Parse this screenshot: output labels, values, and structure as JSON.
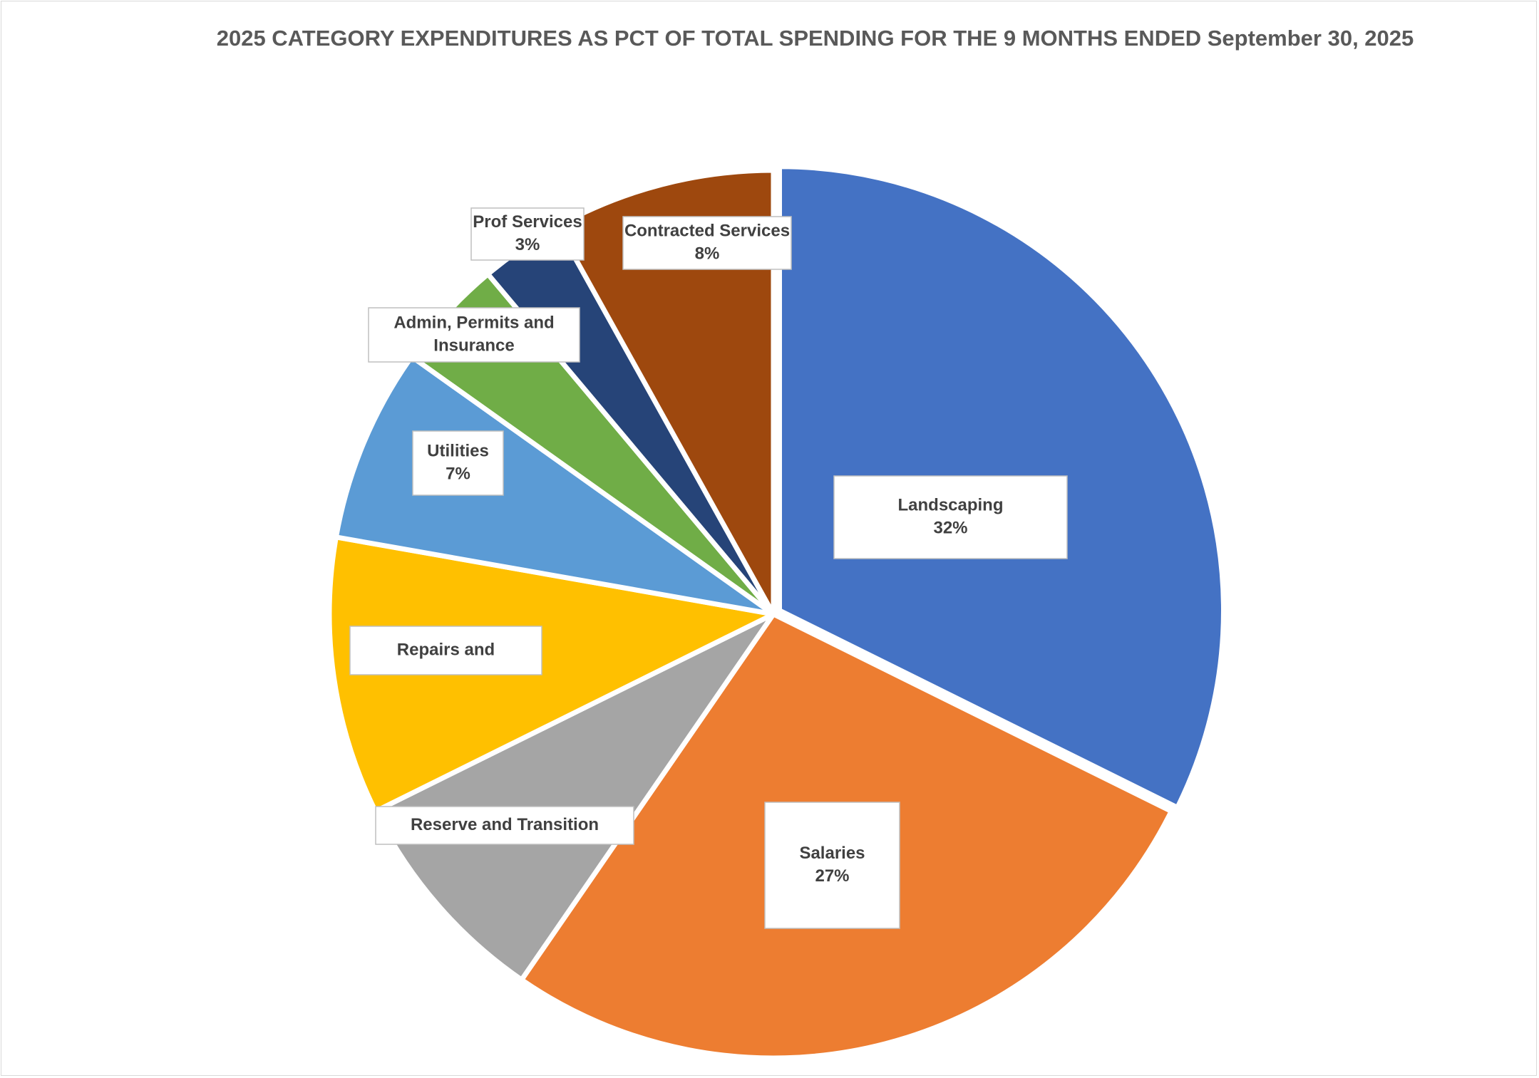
{
  "chart_data": {
    "type": "pie",
    "title": "2025 CATEGORY EXPENDITURES AS PCT OF TOTAL SPENDING FOR THE 9 MONTHS ENDED September 30, 2025",
    "legend": "none",
    "slices": [
      {
        "name": "Landscaping",
        "value": 32,
        "value_label": "32%",
        "color": "#4472C4",
        "exploded": true
      },
      {
        "name": "Salaries",
        "value": 27,
        "value_label": "27%",
        "color": "#ED7D31",
        "exploded": false
      },
      {
        "name": "Reserve and Transition",
        "value": 8,
        "value_label": "",
        "color": "#A5A5A5",
        "exploded": false
      },
      {
        "name": "Repairs and",
        "value": 10,
        "value_label": "",
        "color": "#FFC000",
        "exploded": false
      },
      {
        "name": "Utilities",
        "value": 7,
        "value_label": "7%",
        "color": "#5B9BD5",
        "exploded": false
      },
      {
        "name": "Admin, Permits and Insurance",
        "value": 4,
        "value_label": "",
        "color": "#70AD47",
        "exploded": false
      },
      {
        "name": "Prof Services",
        "value": 3,
        "value_label": "3%",
        "color": "#264478",
        "exploded": false
      },
      {
        "name": "Contracted Services",
        "value": 8,
        "value_label": "8%",
        "color": "#9E480E",
        "exploded": false
      }
    ]
  }
}
